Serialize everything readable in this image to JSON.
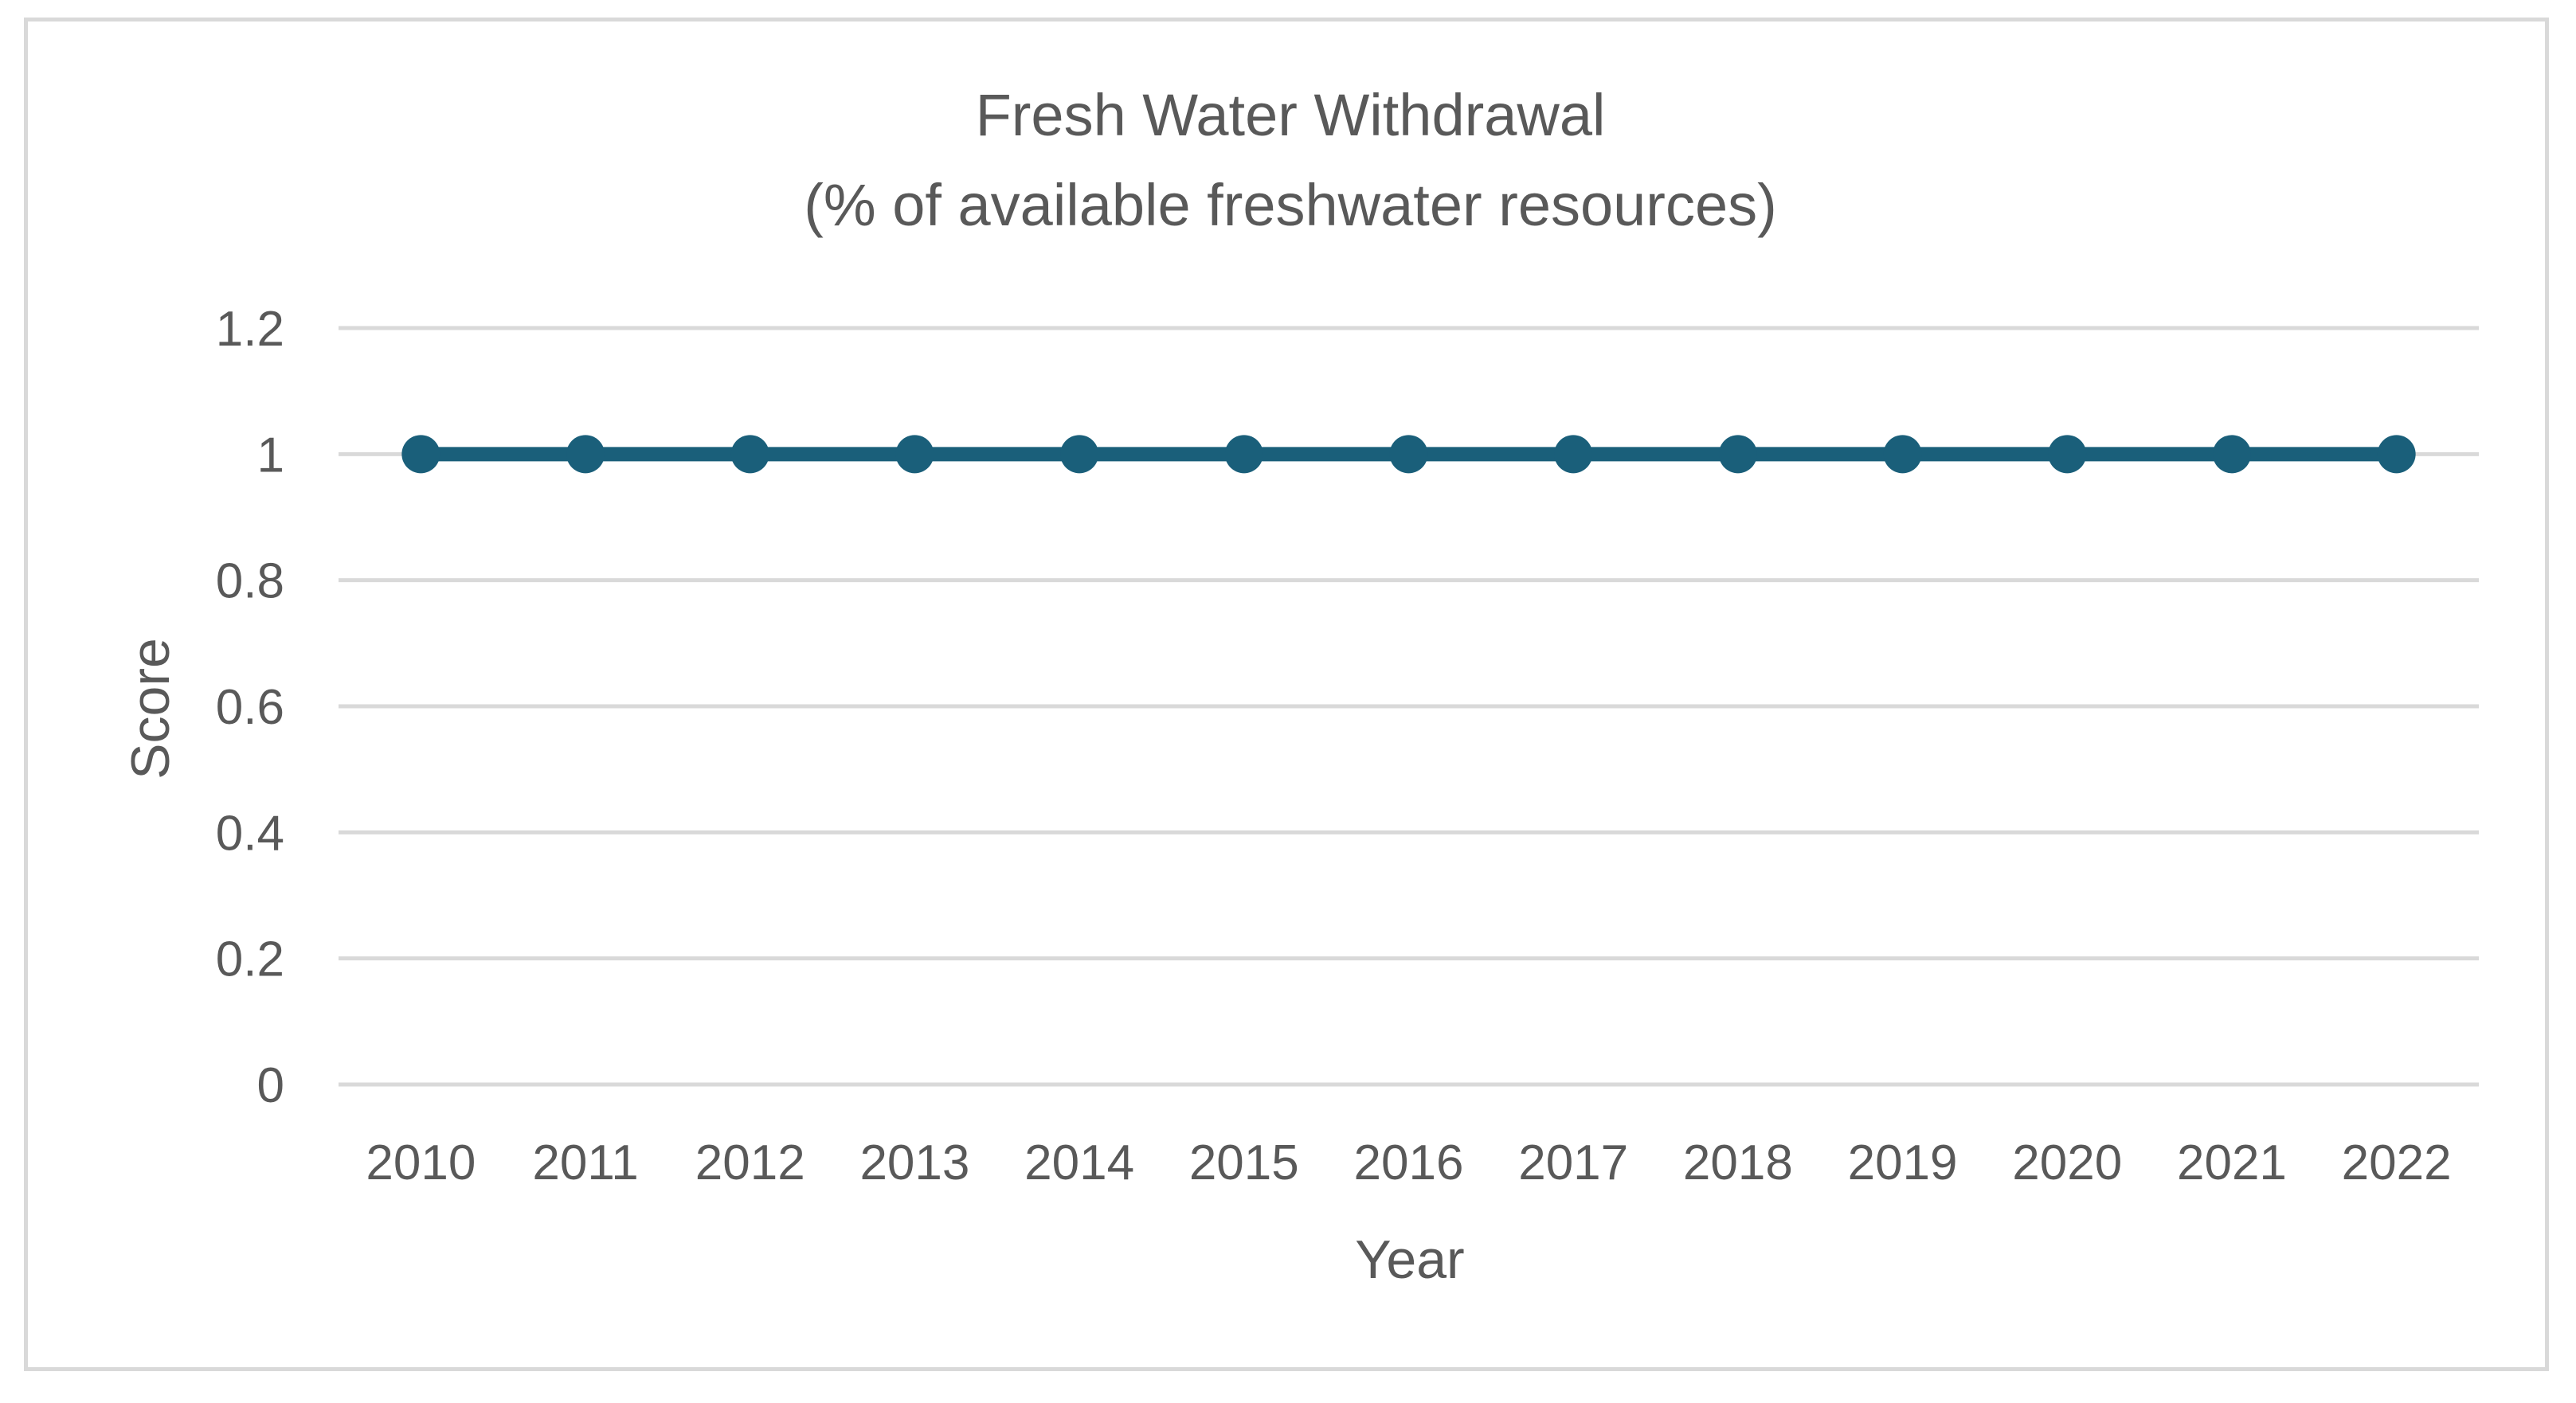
{
  "chart_data": {
    "type": "line",
    "title": "Fresh Water Withdrawal",
    "subtitle": "(% of available freshwater resources)",
    "xlabel": "Year",
    "ylabel": "Score",
    "ylim": [
      0,
      1.2
    ],
    "ystep": 0.2,
    "grid": true,
    "y_tick_labels": [
      "0",
      "0.2",
      "0.4",
      "0.6",
      "0.8",
      "1",
      "1.2"
    ],
    "categories": [
      "2010",
      "2011",
      "2012",
      "2013",
      "2014",
      "2015",
      "2016",
      "2017",
      "2018",
      "2019",
      "2020",
      "2021",
      "2022"
    ],
    "series": [
      {
        "name": "Score",
        "color": "#1a5f7a",
        "values": [
          1,
          1,
          1,
          1,
          1,
          1,
          1,
          1,
          1,
          1,
          1,
          1,
          1
        ]
      }
    ],
    "legend": "none"
  }
}
